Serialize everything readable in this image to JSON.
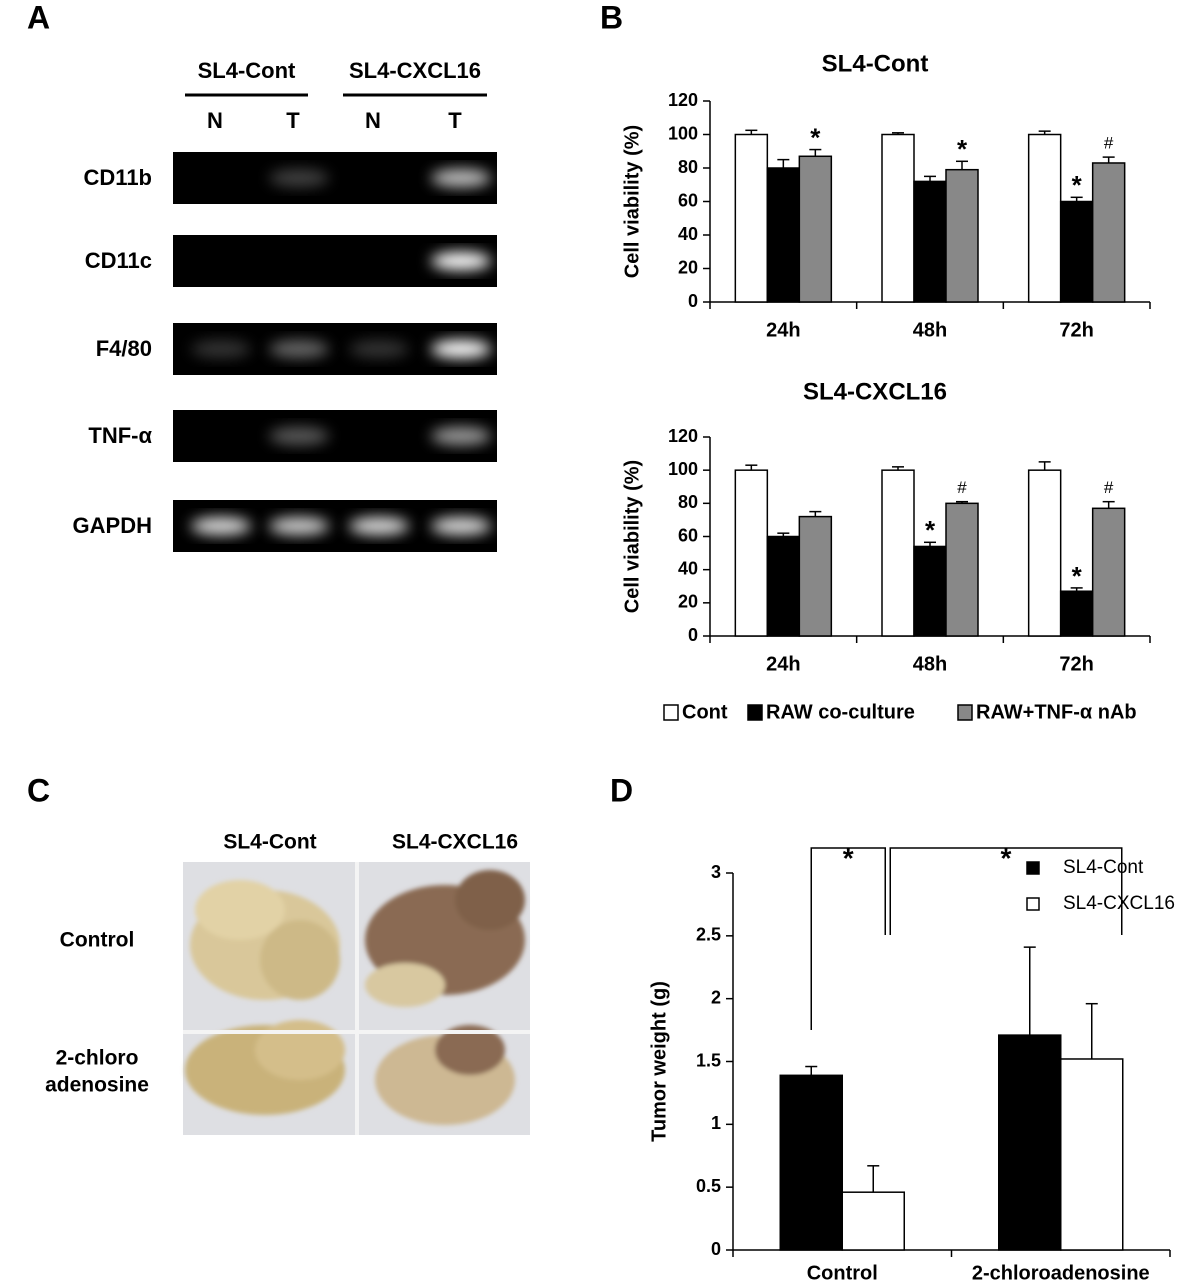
{
  "panel_labels": [
    "A",
    "B",
    "C",
    "D"
  ],
  "gel": {
    "groups": [
      "SL4-Cont",
      "SL4-CXCL16"
    ],
    "lanes": [
      "N",
      "T",
      "N",
      "T"
    ],
    "rows": [
      "CD11b",
      "CD11c",
      "F4/80",
      "TNF-α",
      "GAPDH"
    ]
  },
  "photo": {
    "columns": [
      "SL4-Cont",
      "SL4-CXCL16"
    ],
    "rows": [
      [
        "Control"
      ],
      [
        "2-chloro",
        "adenosine"
      ]
    ]
  },
  "chart_data": [
    {
      "type": "bar",
      "title": "SL4-Cont",
      "y_label": "Cell viability (%)",
      "categories": [
        "24h",
        "48h",
        "72h"
      ],
      "ylim": [
        0,
        120
      ],
      "yticks": [
        0,
        20,
        40,
        60,
        80,
        100,
        120
      ],
      "series": [
        {
          "color": "#ffffff",
          "values": [
            100,
            100,
            100
          ],
          "errors": [
            2.5,
            1,
            2
          ],
          "markers": [
            null,
            null,
            null
          ]
        },
        {
          "color": "#000000",
          "values": [
            80,
            72,
            60
          ],
          "errors": [
            5,
            3,
            2.5
          ],
          "markers": [
            null,
            null,
            "*"
          ]
        },
        {
          "color": "#888888",
          "values": [
            87,
            79,
            83
          ],
          "errors": [
            4,
            5,
            3.5
          ],
          "markers": [
            "*",
            "*",
            "#"
          ]
        }
      ]
    },
    {
      "type": "bar",
      "title": "SL4-CXCL16",
      "y_label": "Cell viability (%)",
      "categories": [
        "24h",
        "48h",
        "72h"
      ],
      "ylim": [
        0,
        120
      ],
      "yticks": [
        0,
        20,
        40,
        60,
        80,
        100,
        120
      ],
      "legend": "bottom",
      "series": [
        {
          "name": "Cont",
          "color": "#ffffff",
          "values": [
            100,
            100,
            100
          ],
          "errors": [
            3,
            2,
            5
          ],
          "markers": [
            null,
            null,
            null
          ]
        },
        {
          "name": "RAW co-culture",
          "color": "#000000",
          "values": [
            60,
            54,
            27
          ],
          "errors": [
            2,
            2.5,
            2
          ],
          "markers": [
            null,
            "*",
            "*"
          ]
        },
        {
          "name": "RAW+TNF-α nAb",
          "color": "#888888",
          "values": [
            72,
            80,
            77
          ],
          "errors": [
            3,
            1,
            4
          ],
          "markers": [
            null,
            "#",
            "#"
          ]
        }
      ]
    },
    {
      "type": "bar",
      "y_label": "Tumor weight (g)",
      "categories": [
        "Control",
        "2-chloroadenosine"
      ],
      "ylim": [
        0,
        3
      ],
      "yticks": [
        0,
        0.5,
        1,
        1.5,
        2,
        2.5,
        3
      ],
      "legend": "upper right",
      "annotations": [
        "*",
        "*"
      ],
      "series": [
        {
          "name": "SL4-Cont",
          "color": "#000000",
          "values": [
            1.39,
            1.71
          ],
          "errors": [
            0.07,
            0.7
          ]
        },
        {
          "name": "SL4-CXCL16",
          "color": "#ffffff",
          "values": [
            0.46,
            1.52
          ],
          "errors": [
            0.21,
            0.44
          ]
        }
      ]
    }
  ]
}
